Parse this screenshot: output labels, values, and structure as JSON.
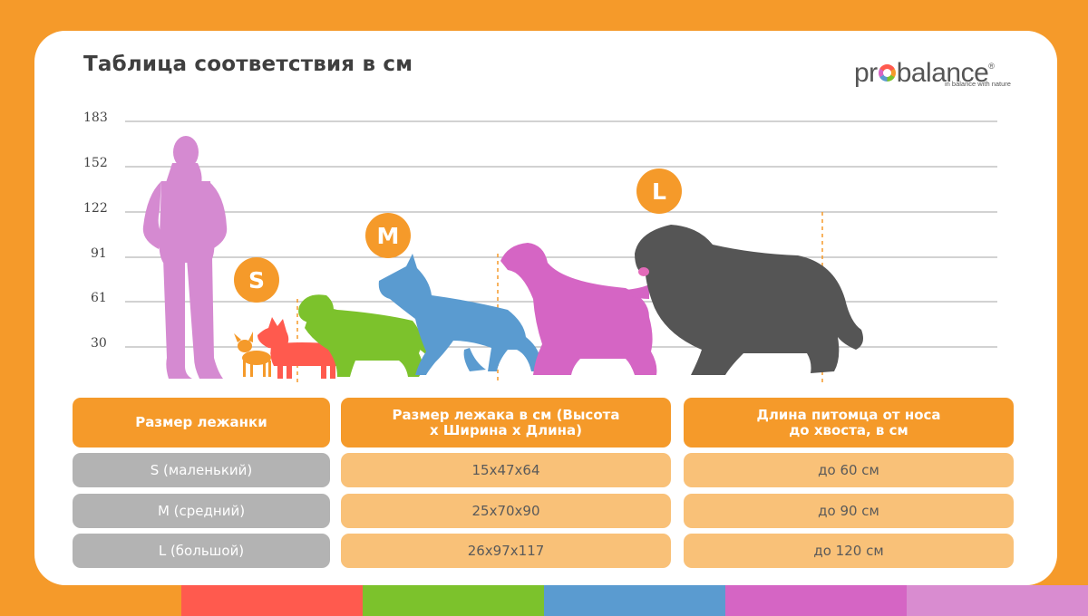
{
  "title": "Таблица соответствия в см",
  "logo": {
    "name": "probalance",
    "tagline": "in balance with nature"
  },
  "colors": {
    "accent": "#f59a2a",
    "light": "#f9c178",
    "gray": "#b3b3b3",
    "human": "#d58ad1",
    "dog_orange": "#f59a2a",
    "dog_red": "#ff5a4e",
    "dog_green": "#7cc22c",
    "dog_blue": "#5a9bd0",
    "dog_pink": "#d565c4",
    "dog_dark": "#555555"
  },
  "chart": {
    "y_ticks": [
      "183",
      "152",
      "122",
      "91",
      "61",
      "30"
    ],
    "badges": [
      "S",
      "M",
      "L"
    ],
    "figures": [
      "human-silhouette-icon",
      "chihuahua-silhouette-icon",
      "corgi-silhouette-icon",
      "retriever-silhouette-icon",
      "shepherd-silhouette-icon",
      "setter-silhouette-icon",
      "newfoundland-silhouette-icon"
    ]
  },
  "table": {
    "headers": [
      "Размер лежанки",
      "Размер лежака в см (Высота х Ширина х Длина)",
      "Длина питомца от носа до хвоста, в см"
    ],
    "header_lines": [
      [
        "Размер лежанки"
      ],
      [
        "Размер лежака в см (Высота",
        "х Ширина х Длина)"
      ],
      [
        "Длина питомца от носа",
        "до хвоста, в см"
      ]
    ],
    "rows": [
      [
        "S (маленький)",
        "15х47х64",
        "до 60 см"
      ],
      [
        "M (средний)",
        "25х70х90",
        "до 90 см"
      ],
      [
        "L (большой)",
        "26х97х117",
        "до 120 см"
      ]
    ]
  },
  "strip_colors": [
    "#ff5a4e",
    "#7cc22c",
    "#5a9bd0",
    "#d565c4",
    "#d98cd0"
  ]
}
